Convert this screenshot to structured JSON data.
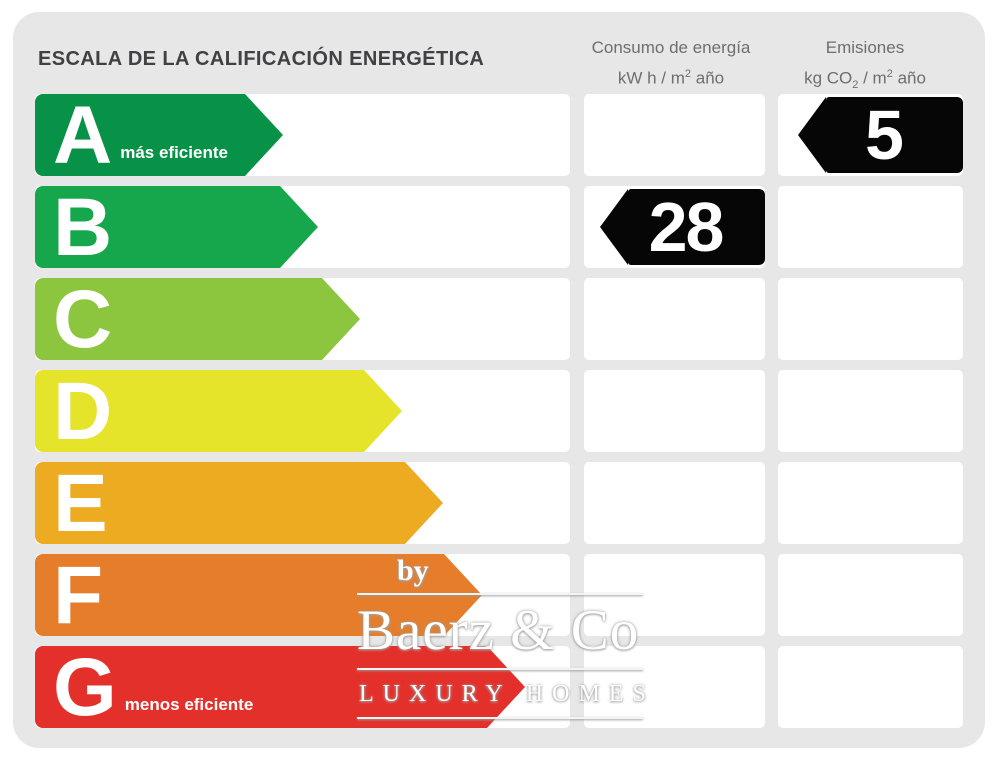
{
  "header": {
    "title": "ESCALA DE LA CALIFICACIÓN ENERGÉTICA",
    "columns": {
      "consumo": {
        "name": "Consumo de energía",
        "unit_prefix": "kW h  / m",
        "unit_sup": "2",
        "unit_suffix": " año"
      },
      "emisiones": {
        "name": "Emisiones",
        "unit_prefix": "kg CO",
        "unit_sub": "2",
        "unit_mid": " / m",
        "unit_sup": "2",
        "unit_suffix": " año"
      }
    }
  },
  "scale": {
    "rows": [
      {
        "grade": "A",
        "label": "más eficiente",
        "color": "#089247",
        "arrow_length": 248,
        "consumo": "",
        "emisiones": "5"
      },
      {
        "grade": "B",
        "label": "",
        "color": "#16a74c",
        "arrow_length": 283,
        "consumo": "28",
        "emisiones": ""
      },
      {
        "grade": "C",
        "label": "",
        "color": "#8cc63e",
        "arrow_length": 325,
        "consumo": "",
        "emisiones": ""
      },
      {
        "grade": "D",
        "label": "",
        "color": "#e6e32b",
        "arrow_length": 367,
        "consumo": "",
        "emisiones": ""
      },
      {
        "grade": "E",
        "label": "",
        "color": "#ecab21",
        "arrow_length": 408,
        "consumo": "",
        "emisiones": ""
      },
      {
        "grade": "F",
        "label": "",
        "color": "#e57d2b",
        "arrow_length": 447,
        "consumo": "",
        "emisiones": ""
      },
      {
        "grade": "G",
        "label": "menos eficiente",
        "color": "#e4302a",
        "arrow_length": 490,
        "consumo": "",
        "emisiones": ""
      }
    ]
  },
  "watermark": {
    "by": "by",
    "brand": "Baerz & Co",
    "tagline": "LUXURY HOMES"
  },
  "colors": {
    "panel_bg": "#e7e7e8",
    "cell_bg": "#ffffff",
    "value_arrow": "#060606",
    "title_text": "#414042",
    "header_text": "#6d6e70"
  },
  "chart_data": {
    "type": "bar",
    "title": "ESCALA DE LA CALIFICACIÓN ENERGÉTICA",
    "categories": [
      "A",
      "B",
      "C",
      "D",
      "E",
      "F",
      "G"
    ],
    "category_labels": {
      "A": "más eficiente",
      "G": "menos eficiente"
    },
    "series": [
      {
        "name": "Consumo de energía kW h / m² año",
        "values": [
          null,
          28,
          null,
          null,
          null,
          null,
          null
        ]
      },
      {
        "name": "Emisiones kg CO₂ / m² año",
        "values": [
          5,
          null,
          null,
          null,
          null,
          null,
          null
        ]
      }
    ],
    "ratings": {
      "consumo": {
        "grade": "B",
        "value": 28
      },
      "emisiones": {
        "grade": "A",
        "value": 5
      }
    }
  }
}
